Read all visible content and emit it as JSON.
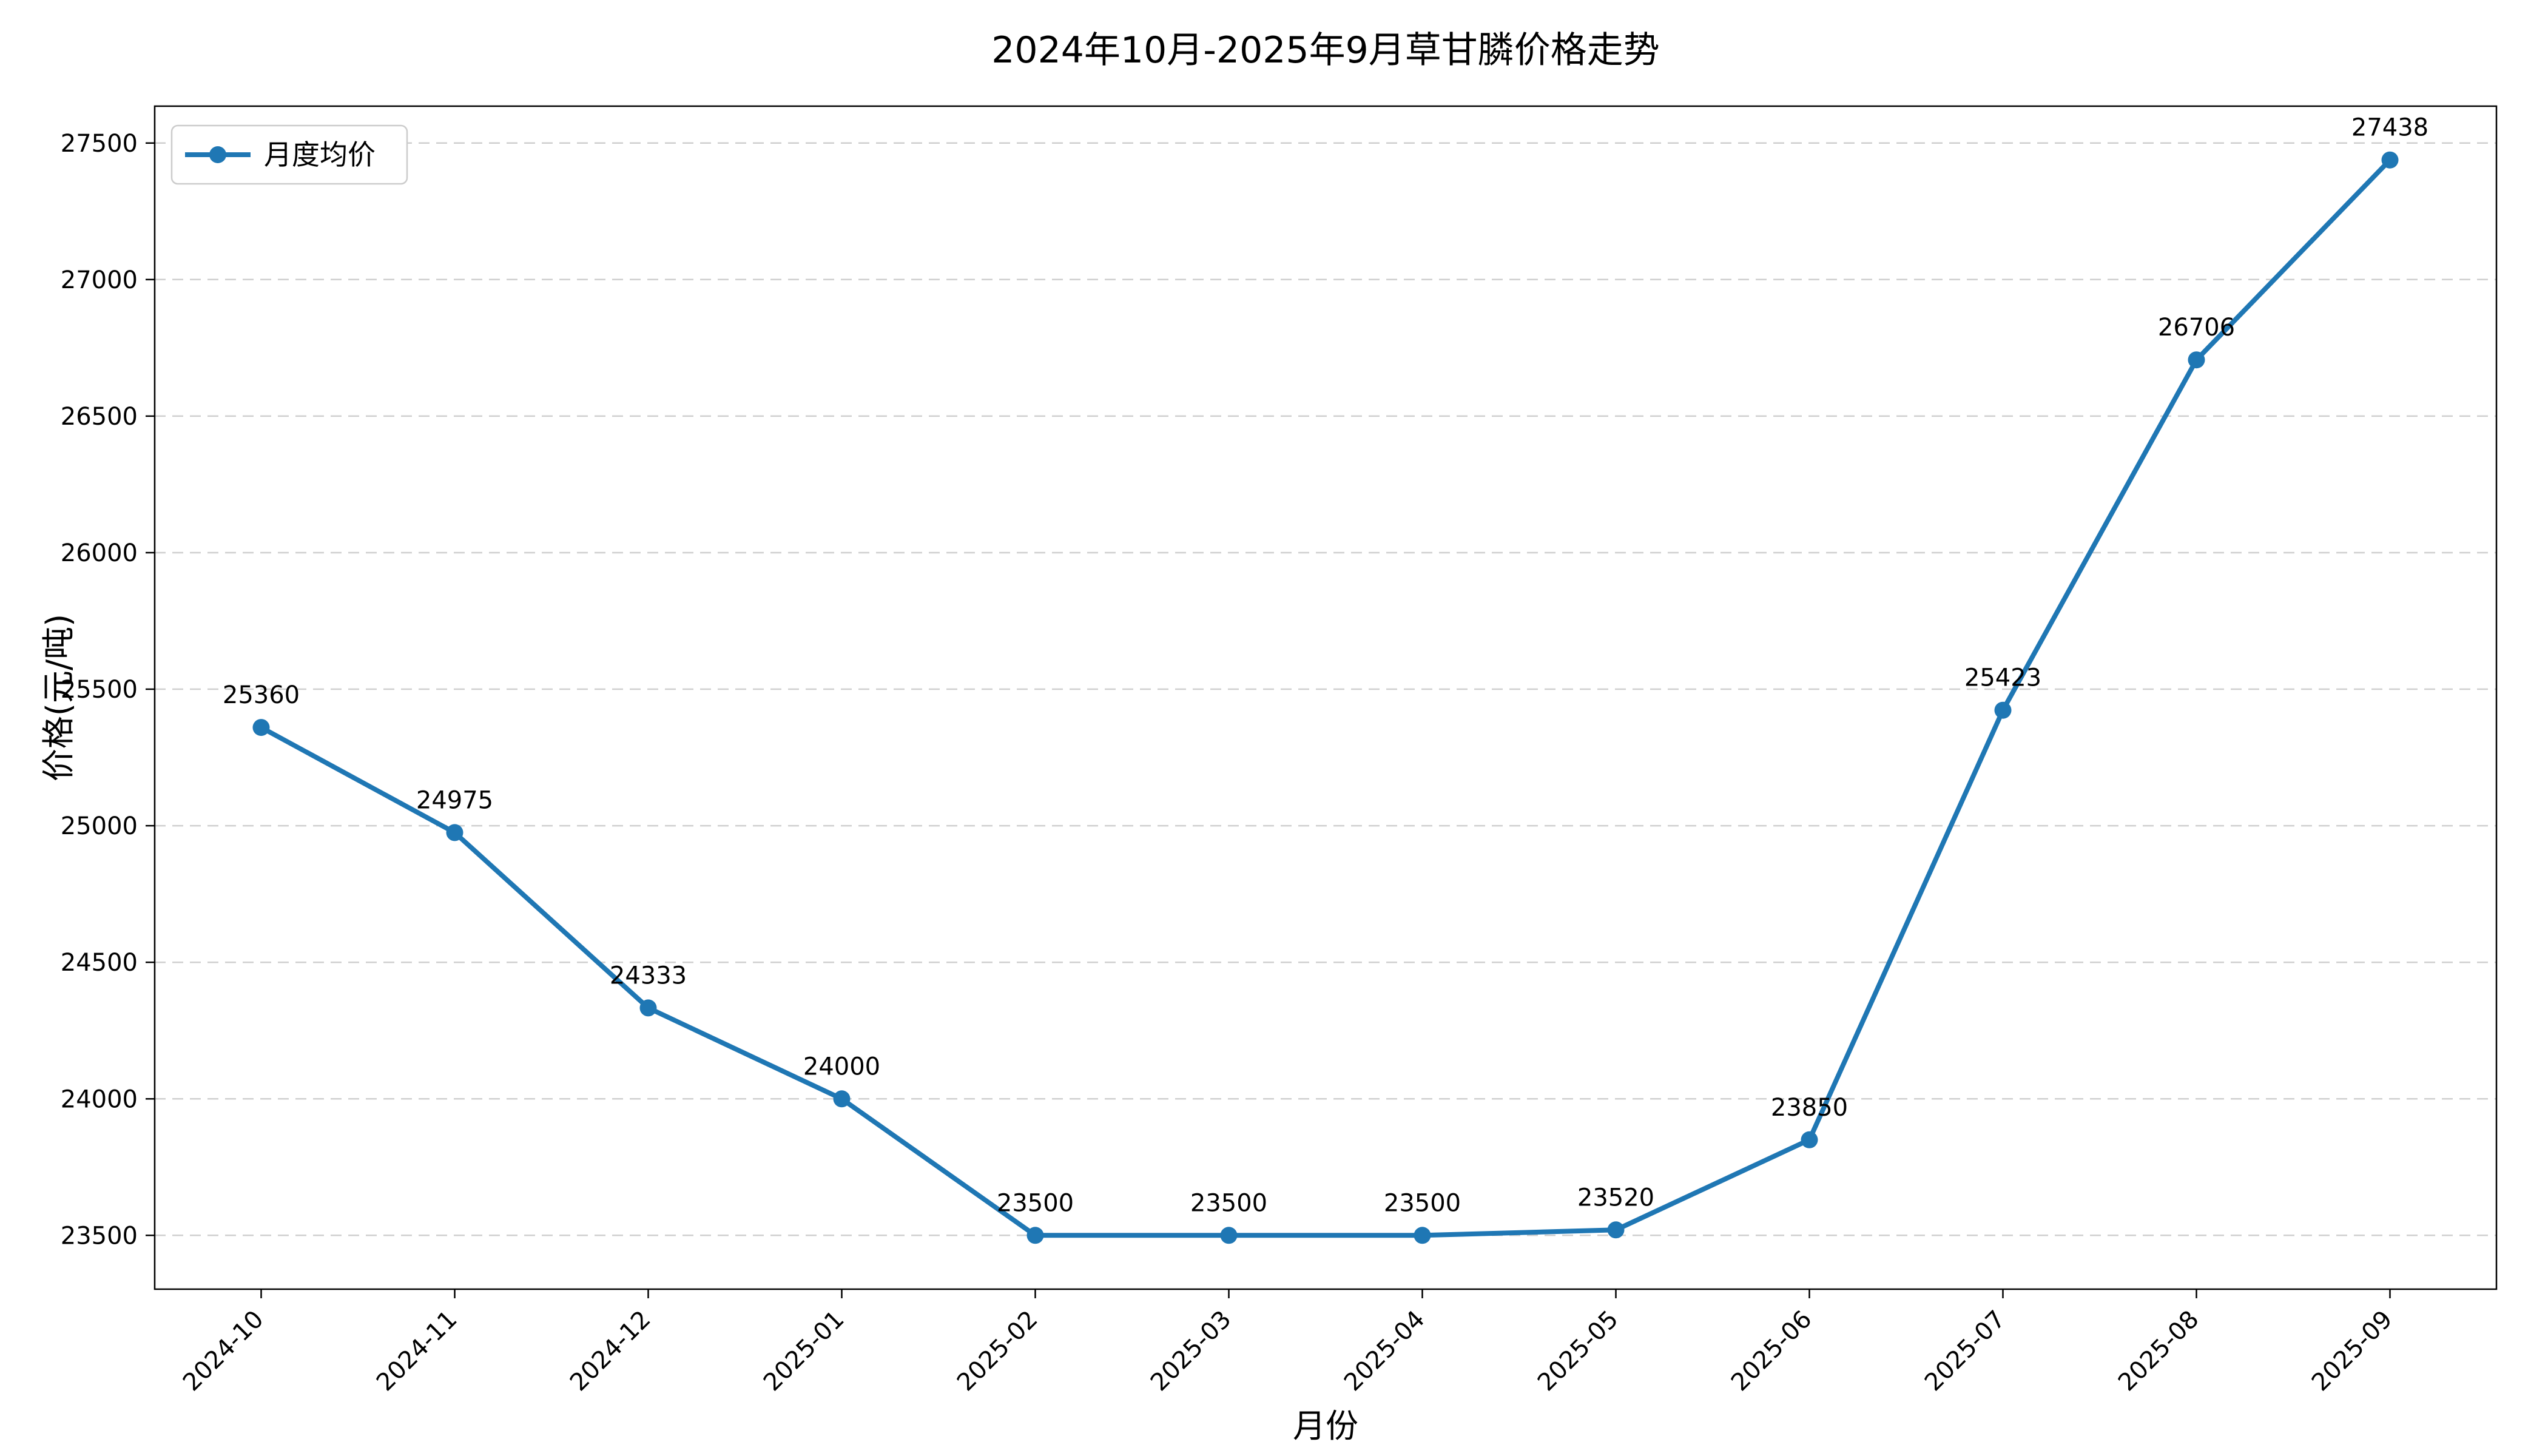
{
  "chart_data": {
    "type": "line",
    "title": "2024年10月-2025年9月草甘膦价格走势",
    "xlabel": "月份",
    "ylabel": "价格(元/吨)",
    "categories": [
      "2024-10",
      "2024-11",
      "2024-12",
      "2025-01",
      "2025-02",
      "2025-03",
      "2025-04",
      "2025-05",
      "2025-06",
      "2025-07",
      "2025-08",
      "2025-09"
    ],
    "series": [
      {
        "name": "月度均价",
        "values": [
          25360,
          24975,
          24333,
          24000,
          23500,
          23500,
          23500,
          23520,
          23850,
          25423,
          26706,
          27438
        ],
        "color": "#1f77b4",
        "marker": "circle",
        "point_labels": [
          25360,
          24975,
          24333,
          24000,
          23500,
          23500,
          23500,
          23520,
          23850,
          25423,
          26706,
          27438
        ]
      }
    ],
    "yticks": [
      23500,
      24000,
      24500,
      25000,
      25500,
      26000,
      26500,
      27000,
      27500
    ],
    "ylim": [
      23303,
      27635
    ],
    "grid": "horizontal-dashed",
    "legend_position": "upper-left",
    "background": "#ffffff",
    "xtick_rotation": 45
  }
}
